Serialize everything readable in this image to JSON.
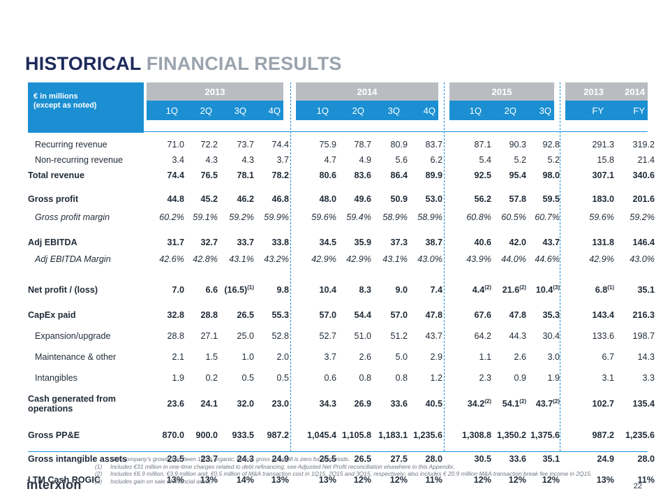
{
  "title_dark": "HISTORICAL",
  "title_light": "FINANCIAL RESULTS",
  "unit_line1": "€ in millions",
  "unit_line2": "(except as noted)",
  "groups": [
    {
      "year": "2013",
      "quarters": [
        "1Q",
        "2Q",
        "3Q",
        "4Q"
      ]
    },
    {
      "year": "2014",
      "quarters": [
        "1Q",
        "2Q",
        "3Q",
        "4Q"
      ]
    },
    {
      "year": "2015",
      "quarters": [
        "1Q",
        "2Q",
        "3Q"
      ]
    }
  ],
  "fy": {
    "years": [
      "2013",
      "2014"
    ],
    "labels": [
      "FY",
      "FY"
    ]
  },
  "rows": [
    {
      "label": "Recurring revenue",
      "style": "indent",
      "values": [
        "71.0",
        "72.2",
        "73.7",
        "74.4",
        "75.9",
        "78.7",
        "80.9",
        "83.7",
        "87.1",
        "90.3",
        "92.8",
        "291.3",
        "319.2"
      ]
    },
    {
      "label": "Non-recurring revenue",
      "style": "indent",
      "values": [
        "3.4",
        "4.3",
        "4.3",
        "3.7",
        "4.7",
        "4.9",
        "5.6",
        "6.2",
        "5.4",
        "5.2",
        "5.2",
        "15.8",
        "21.4"
      ]
    },
    {
      "label": "Total revenue",
      "style": "bold",
      "values": [
        "74.4",
        "76.5",
        "78.1",
        "78.2",
        "80.6",
        "83.6",
        "86.4",
        "89.9",
        "92.5",
        "95.4",
        "98.0",
        "307.1",
        "340.6"
      ]
    },
    {
      "label": "Gross profit",
      "style": "bold",
      "values": [
        "44.8",
        "45.2",
        "46.2",
        "46.8",
        "48.0",
        "49.6",
        "50.9",
        "53.0",
        "56.2",
        "57.8",
        "59.5",
        "183.0",
        "201.6"
      ]
    },
    {
      "label": "Gross profit margin",
      "style": "ital",
      "values": [
        "60.2%",
        "59.1%",
        "59.2%",
        "59.9%",
        "59.6%",
        "59.4%",
        "58.9%",
        "58.9%",
        "60.8%",
        "60.5%",
        "60.7%",
        "59.6%",
        "59.2%"
      ]
    },
    {
      "label": "Adj EBITDA",
      "style": "bold",
      "values": [
        "31.7",
        "32.7",
        "33.7",
        "33.8",
        "34.5",
        "35.9",
        "37.3",
        "38.7",
        "40.6",
        "42.0",
        "43.7",
        "131.8",
        "146.4"
      ]
    },
    {
      "label": "Adj EBITDA Margin",
      "style": "ital",
      "values": [
        "42.6%",
        "42.8%",
        "43.1%",
        "43.2%",
        "42.9%",
        "42.9%",
        "43.1%",
        "43.0%",
        "43.9%",
        "44.0%",
        "44.6%",
        "42.9%",
        "43.0%"
      ]
    },
    {
      "label": "Net profit / (loss)",
      "style": "bold",
      "values": [
        "7.0",
        "6.6",
        "(16.5)",
        "9.8",
        "10.4",
        "8.3",
        "9.0",
        "7.4",
        "4.4",
        "21.6",
        "10.4",
        "6.8",
        "35.1"
      ],
      "sups": {
        "2": "(1)",
        "8": "(2)",
        "9": "(2)",
        "10": "(3)",
        "11": "(1)"
      }
    },
    {
      "label": "CapEx paid",
      "style": "bold",
      "values": [
        "32.8",
        "28.8",
        "26.5",
        "55.3",
        "57.0",
        "54.4",
        "57.0",
        "47.8",
        "67.6",
        "47.8",
        "35.3",
        "143.4",
        "216.3"
      ]
    },
    {
      "label": "Expansion/upgrade",
      "style": "indent",
      "values": [
        "28.8",
        "27.1",
        "25.0",
        "52.8",
        "52.7",
        "51.0",
        "51.2",
        "43.7",
        "64.2",
        "44.3",
        "30.4",
        "133.6",
        "198.7"
      ]
    },
    {
      "label": "Maintenance & other",
      "style": "indent",
      "values": [
        "2.1",
        "1.5",
        "1.0",
        "2.0",
        "3.7",
        "2.6",
        "5.0",
        "2.9",
        "1.1",
        "2.6",
        "3.0",
        "6.7",
        "14.3"
      ]
    },
    {
      "label": "Intangibles",
      "style": "indent",
      "values": [
        "1.9",
        "0.2",
        "0.5",
        "0.5",
        "0.6",
        "0.8",
        "0.8",
        "1.2",
        "2.3",
        "0.9",
        "1.9",
        "3.1",
        "3.3"
      ]
    },
    {
      "label": "Cash generated from operations",
      "style": "bold",
      "values": [
        "23.6",
        "24.1",
        "32.0",
        "23.0",
        "34.3",
        "26.9",
        "33.6",
        "40.5",
        "34.2",
        "54.1",
        "43.7",
        "102.7",
        "135.4"
      ],
      "sups": {
        "8": "(2)",
        "9": "(2)",
        "10": "(2)"
      }
    },
    {
      "label": "Gross PP&E",
      "style": "bold",
      "values": [
        "870.0",
        "900.0",
        "933.5",
        "987.2",
        "1,045.4",
        "1,105.8",
        "1,183.1",
        "1,235.6",
        "1,308.8",
        "1,350.2",
        "1,375.6",
        "987.2",
        "1,235.6"
      ]
    },
    {
      "label": "Gross intangible assets",
      "style": "bold",
      "values": [
        "23.5",
        "23.7",
        "24.3",
        "24.9",
        "25.5",
        "26.5",
        "27.5",
        "28.0",
        "30.5",
        "33.6",
        "35.1",
        "24.9",
        "28.0"
      ]
    },
    {
      "label": "LTM Cash ROGIC",
      "style": "bold",
      "values": [
        "13%",
        "13%",
        "14%",
        "13%",
        "13%",
        "12%",
        "12%",
        "11%",
        "12%",
        "12%",
        "12%",
        "13%",
        "11%"
      ]
    }
  ],
  "footnotes": [
    {
      "n": "",
      "text": "The Company’s growth has been 100% organic; hence, gross goodwill is zero for all periods."
    },
    {
      "n": "(1)",
      "text": "Includes €31 million in one-time charges related to debt refinancing, see Adjusted Net Profit reconciliation elsewhere in this Appendix."
    },
    {
      "n": "(2)",
      "text": "Includes €6.9 million, €3.9 million and, €0.5 million of M&A transaction cost in 1Q15, 2Q15 and 3Q15, respectively; also includes € 20.9 million M&A transaction break fee income in 2Q15."
    },
    {
      "n": "(3)",
      "text": "Includes gain on sale of financial asset."
    }
  ],
  "logo": "interxion",
  "page_number": "22",
  "colors": {
    "header_blue": "#1b8fd2",
    "header_grey": "#b9bdc2",
    "title_dark": "#1e2a5a",
    "title_light": "#9aa3ad"
  }
}
